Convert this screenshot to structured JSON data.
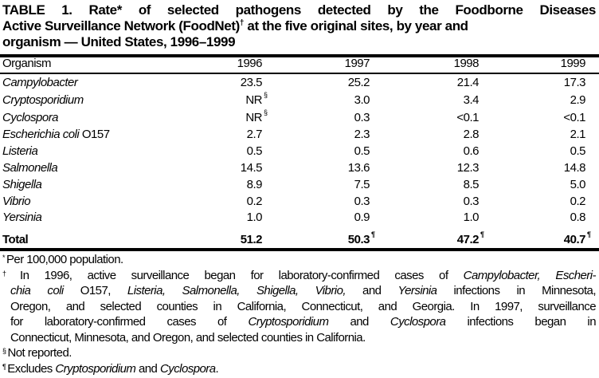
{
  "title": {
    "line1": "TABLE 1. Rate* of selected pathogens detected by the Foodborne Diseases",
    "line2a": "Active Surveillance Network (FoodNet)",
    "line2sup": "†",
    "line2b": " at the five original sites, by year and",
    "line3": "organism — United States, 1996–1999"
  },
  "table": {
    "headers": [
      "Organism",
      "1996",
      "1997",
      "1998",
      "1999"
    ],
    "rows": [
      {
        "organism": "Campylobacter",
        "values": [
          "23.5",
          "25.2",
          "21.4",
          "17.3"
        ]
      },
      {
        "organism": "Cryptosporidium",
        "values": [
          "NR",
          "3.0",
          "3.4",
          "2.9"
        ],
        "sup": "§"
      },
      {
        "organism": "Cyclospora",
        "values": [
          "NR",
          "0.3",
          "<0.1",
          "<0.1"
        ],
        "sup": "§"
      },
      {
        "organism": "Escherichia coli",
        "organism_suffix": " O157",
        "values": [
          "2.7",
          "2.3",
          "2.8",
          "2.1"
        ]
      },
      {
        "organism": "Listeria",
        "values": [
          "0.5",
          "0.5",
          "0.6",
          "0.5"
        ]
      },
      {
        "organism": "Salmonella",
        "values": [
          "14.5",
          "13.6",
          "12.3",
          "14.8"
        ]
      },
      {
        "organism": "Shigella",
        "values": [
          "8.9",
          "7.5",
          "8.5",
          "5.0"
        ]
      },
      {
        "organism": "Vibrio",
        "values": [
          "0.2",
          "0.3",
          "0.3",
          "0.2"
        ]
      },
      {
        "organism": "Yersinia",
        "values": [
          "1.0",
          "0.9",
          "1.0",
          "0.8"
        ]
      }
    ],
    "total": {
      "label": "Total",
      "values": [
        "51.2",
        "50.3",
        "47.2",
        "40.7"
      ],
      "sup": "¶"
    }
  },
  "footnotes": {
    "n1": {
      "mark": "*",
      "text": "Per 100,000 population."
    },
    "n2": {
      "mark": "†",
      "l1": [
        "In 1996, active surveillance began for laboratory-confirmed cases of ",
        "Campylobacter, Escheri-"
      ],
      "l2": [
        "chia coli",
        " O157, ",
        "Listeria, Salmonella, Shigella, Vibrio,",
        " and ",
        "Yersinia",
        " infections in Minnesota,"
      ],
      "l3": "Oregon, and selected counties in California, Connecticut, and Georgia. In 1997, surveillance",
      "l4": [
        "for laboratory-confirmed cases of ",
        "Cryptosporidium",
        " and ",
        "Cyclospora",
        " infections began in"
      ],
      "l5": "Connecticut, Minnesota, and Oregon, and selected counties in California."
    },
    "n3": {
      "mark": "§",
      "text": "Not reported."
    },
    "n4": {
      "mark": "¶",
      "text": "Excludes ",
      "i1": "Cryptosporidium",
      "and": " and ",
      "i2": "Cyclospora",
      "end": "."
    }
  }
}
